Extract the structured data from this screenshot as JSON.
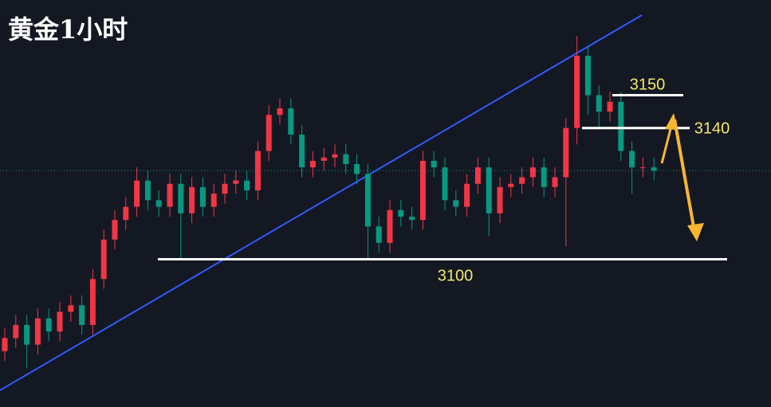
{
  "chart_data": {
    "type": "candlestick",
    "title": "黄金1小时",
    "ylim": [
      3055,
      3179
    ],
    "up_color": "#f23645",
    "down_color": "#089981",
    "open": [
      3072,
      3076,
      3080,
      3074,
      3082,
      3078,
      3084,
      3086,
      3080,
      3094,
      3106,
      3112,
      3116,
      3124,
      3118,
      3116,
      3123,
      3114,
      3122,
      3116,
      3120,
      3123,
      3124,
      3121,
      3133,
      3144,
      3146,
      3138,
      3128,
      3130,
      3131,
      3132,
      3129,
      3126,
      3110,
      3105,
      3115,
      3113,
      3112,
      3130,
      3128,
      3118,
      3116,
      3123,
      3128,
      3114,
      3122,
      3123,
      3125,
      3128,
      3122,
      3125,
      3140,
      3162,
      3150,
      3145,
      3148,
      3133,
      3128,
      3128
    ],
    "high": [
      3079,
      3083,
      3083,
      3085,
      3085,
      3087,
      3089,
      3089,
      3097,
      3109,
      3115,
      3119,
      3128,
      3127,
      3121,
      3126,
      3126,
      3125,
      3125,
      3123,
      3126,
      3127,
      3127,
      3136,
      3147,
      3149,
      3149,
      3141,
      3133,
      3134,
      3135,
      3135,
      3132,
      3129,
      3113,
      3118,
      3118,
      3116,
      3133,
      3133,
      3131,
      3121,
      3126,
      3131,
      3131,
      3125,
      3126,
      3128,
      3131,
      3131,
      3128,
      3143,
      3168,
      3165,
      3153,
      3151,
      3151,
      3136,
      3131,
      3131
    ],
    "low": [
      3069,
      3073,
      3067,
      3071,
      3075,
      3075,
      3081,
      3077,
      3077,
      3091,
      3103,
      3109,
      3113,
      3115,
      3113,
      3113,
      3100,
      3111,
      3113,
      3113,
      3117,
      3120,
      3118,
      3118,
      3130,
      3141,
      3135,
      3125,
      3125,
      3127,
      3128,
      3126,
      3123,
      3100,
      3102,
      3102,
      3110,
      3109,
      3109,
      3125,
      3115,
      3113,
      3113,
      3120,
      3107,
      3111,
      3119,
      3120,
      3122,
      3119,
      3119,
      3104,
      3135,
      3144,
      3140,
      3142,
      3130,
      3120,
      3125,
      3124
    ],
    "close": [
      3076,
      3080,
      3074,
      3082,
      3078,
      3084,
      3086,
      3080,
      3094,
      3106,
      3112,
      3116,
      3124,
      3118,
      3116,
      3123,
      3114,
      3122,
      3116,
      3120,
      3123,
      3124,
      3121,
      3133,
      3144,
      3146,
      3138,
      3128,
      3130,
      3131,
      3132,
      3129,
      3126,
      3110,
      3105,
      3115,
      3113,
      3112,
      3130,
      3128,
      3118,
      3116,
      3123,
      3128,
      3114,
      3122,
      3123,
      3125,
      3128,
      3122,
      3125,
      3140,
      3162,
      3150,
      3145,
      3148,
      3133,
      3128,
      3128,
      3127
    ],
    "levels": [
      3150,
      3140,
      3100
    ]
  }
}
